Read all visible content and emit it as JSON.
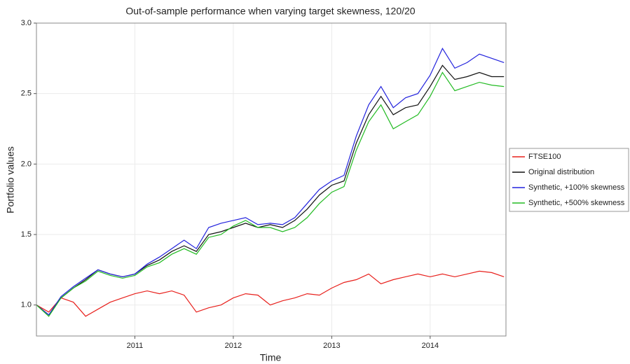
{
  "chart_data": {
    "type": "line",
    "title": "Out-of-sample performance when varying target skewness, 120/20",
    "x_label": "Time",
    "y_label": "Portfolio values",
    "x": [
      2010,
      2010.125,
      2010.25,
      2010.375,
      2010.5,
      2010.625,
      2010.75,
      2010.875,
      2011,
      2011.125,
      2011.25,
      2011.375,
      2011.5,
      2011.625,
      2011.75,
      2011.875,
      2012,
      2012.125,
      2012.25,
      2012.375,
      2012.5,
      2012.625,
      2012.75,
      2012.875,
      2013,
      2013.125,
      2013.25,
      2013.375,
      2013.5,
      2013.625,
      2013.75,
      2013.875,
      2014,
      2014.125,
      2014.25,
      2014.375,
      2014.5,
      2014.625,
      2014.75
    ],
    "series": [
      {
        "name": "FTSE100",
        "color": "#e8201c",
        "values": [
          1.0,
          0.95,
          1.05,
          1.02,
          0.92,
          0.97,
          1.02,
          1.05,
          1.08,
          1.1,
          1.08,
          1.1,
          1.07,
          0.95,
          0.98,
          1.0,
          1.05,
          1.08,
          1.07,
          1.0,
          1.03,
          1.05,
          1.08,
          1.07,
          1.12,
          1.16,
          1.18,
          1.22,
          1.15,
          1.18,
          1.2,
          1.22,
          1.2,
          1.22,
          1.2,
          1.22,
          1.24,
          1.23,
          1.2
        ]
      },
      {
        "name": "Original distribution",
        "color": "#111111",
        "values": [
          1.0,
          0.93,
          1.05,
          1.12,
          1.18,
          1.25,
          1.22,
          1.2,
          1.22,
          1.28,
          1.32,
          1.38,
          1.42,
          1.38,
          1.5,
          1.52,
          1.55,
          1.58,
          1.55,
          1.57,
          1.55,
          1.6,
          1.68,
          1.78,
          1.85,
          1.88,
          2.15,
          2.35,
          2.48,
          2.35,
          2.4,
          2.42,
          2.55,
          2.7,
          2.6,
          2.62,
          2.65,
          2.62,
          2.62
        ]
      },
      {
        "name": "Synthetic, +100% skewness",
        "color": "#2222dd",
        "values": [
          1.0,
          0.93,
          1.06,
          1.13,
          1.19,
          1.25,
          1.22,
          1.2,
          1.22,
          1.29,
          1.34,
          1.4,
          1.46,
          1.4,
          1.55,
          1.58,
          1.6,
          1.62,
          1.57,
          1.58,
          1.57,
          1.62,
          1.72,
          1.82,
          1.88,
          1.92,
          2.2,
          2.42,
          2.55,
          2.4,
          2.47,
          2.5,
          2.63,
          2.82,
          2.68,
          2.72,
          2.78,
          2.75,
          2.72
        ]
      },
      {
        "name": "Synthetic, +500% skewness",
        "color": "#22bb22",
        "values": [
          1.0,
          0.92,
          1.05,
          1.12,
          1.17,
          1.24,
          1.21,
          1.19,
          1.21,
          1.27,
          1.3,
          1.36,
          1.4,
          1.36,
          1.48,
          1.5,
          1.56,
          1.6,
          1.55,
          1.55,
          1.52,
          1.55,
          1.62,
          1.72,
          1.8,
          1.84,
          2.1,
          2.3,
          2.42,
          2.25,
          2.3,
          2.35,
          2.48,
          2.65,
          2.52,
          2.55,
          2.58,
          2.56,
          2.55
        ]
      }
    ],
    "xlim": [
      2010,
      2014.77
    ],
    "xticks": [
      2011,
      2012,
      2013,
      2014
    ],
    "ylim": [
      0.78,
      3.0
    ],
    "yticks": [
      {
        "value": 1,
        "label": "1.0"
      },
      1.5,
      {
        "value": 2,
        "label": "2.0"
      },
      2.5,
      {
        "value": 3,
        "label": "3.0"
      }
    ],
    "grid": true
  }
}
